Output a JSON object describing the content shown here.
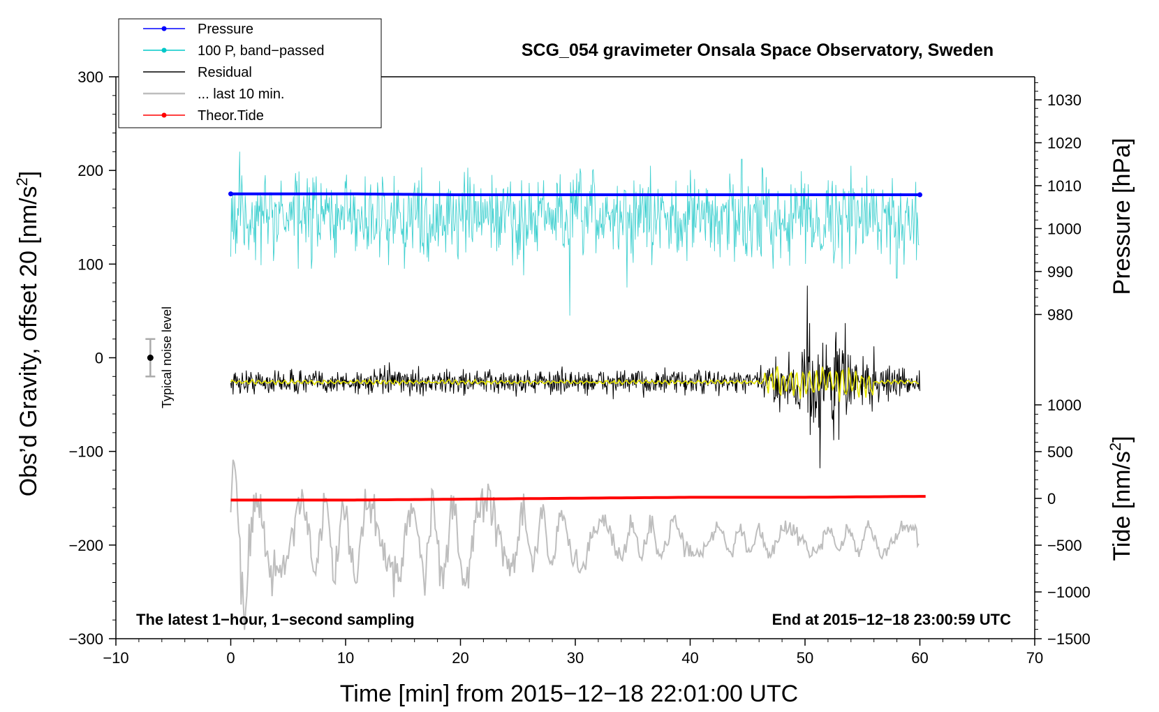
{
  "chart_data": {
    "type": "line",
    "title": "SCG_054 gravimeter Onsala Space Observatory, Sweden",
    "xlabel": "Time [min] from 2015−12−18 22:01:00 UTC",
    "ylabel_left": "Obs’d Gravity, offset 20 [nm/s²]",
    "ylabel_left_main": "Obs’d Gravity, offset 20 [nm/s",
    "ylabel_right_pressure": "Pressure [hPa]",
    "ylabel_right_tide": "Tide [nm/s²]",
    "ylabel_right_tide_main": "Tide [nm/s",
    "ylabel_sup": "2",
    "ylabel_close": "]",
    "xlim": [
      -10,
      70
    ],
    "ylim_left": [
      -300,
      300
    ],
    "x_ticks": [
      "−10",
      "0",
      "10",
      "20",
      "30",
      "40",
      "50",
      "60",
      "70"
    ],
    "x_tick_values": [
      -10,
      0,
      10,
      20,
      30,
      40,
      50,
      60,
      70
    ],
    "y_ticks_left": [
      "−300",
      "−200",
      "−100",
      "0",
      "100",
      "200",
      "300"
    ],
    "y_tick_values_left": [
      -300,
      -200,
      -100,
      0,
      100,
      200,
      300
    ],
    "pressure_ticks": [
      "980",
      "990",
      "1000",
      "1010",
      "1020",
      "1030"
    ],
    "pressure_tick_values": [
      980,
      990,
      1000,
      1010,
      1020,
      1030
    ],
    "tide_ticks": [
      "−1500",
      "−1000",
      "−500",
      "0",
      "500",
      "1000"
    ],
    "tide_tick_values": [
      -1500,
      -1000,
      -500,
      0,
      500,
      1000
    ],
    "annotation_left": "The latest 1−hour, 1−second sampling",
    "annotation_right": "End at 2015−12−18 23:00:59 UTC",
    "noise_label": "Typical noise level",
    "noise_bar": {
      "x": -7,
      "center": 0,
      "half_range": 20
    },
    "legend": [
      {
        "label": "Pressure",
        "color": "#0000ff",
        "marker": true
      },
      {
        "label": "100 P, band−passed",
        "color": "#00c8c8",
        "marker": true
      },
      {
        "label": "Residual",
        "color": "#000000",
        "marker": false
      },
      {
        "label": "... last 10 min.",
        "color": "#bebebe",
        "marker": false
      },
      {
        "label": "Theor.Tide",
        "color": "#ff0000",
        "marker": true
      }
    ],
    "series": [
      {
        "name": "Pressure",
        "color": "#0000ff",
        "x": [
          0,
          10,
          20,
          30,
          40,
          50,
          60
        ],
        "y": [
          175,
          175,
          174,
          174,
          174,
          174,
          174
        ]
      },
      {
        "name": "100 P, band−passed",
        "color": "#40d0d0",
        "x": [
          0,
          0.8,
          7.5,
          14,
          25.5,
          29.5,
          34.5,
          44.5,
          48,
          58,
          60
        ],
        "y": [
          155,
          220,
          150,
          180,
          90,
          45,
          75,
          212,
          150,
          85,
          155
        ]
      },
      {
        "name": "Residual",
        "color": "#000000",
        "x": [
          0,
          13.8,
          20,
          30,
          40,
          46,
          50.2,
          51.2,
          52.5,
          53.5,
          55,
          60
        ],
        "y": [
          -26,
          -5,
          -26,
          -26,
          -26,
          -26,
          77,
          -20,
          -88,
          37,
          -60,
          -26
        ]
      },
      {
        "name": "Residual (smoothed)",
        "color": "#e6e600",
        "x": [
          0,
          30,
          46,
          50.5,
          52,
          56,
          60
        ],
        "y": [
          -26,
          -26,
          -26,
          -25,
          -28,
          -26,
          -26
        ]
      },
      {
        "name": "... last 10 min.",
        "color": "#bebebe",
        "x": [
          0,
          0.4,
          1.1,
          2.3,
          3.8,
          10,
          20,
          21.7,
          28.5,
          38,
          50,
          60
        ],
        "y": [
          -165,
          -83,
          -260,
          -265,
          -200,
          -185,
          -190,
          -245,
          -210,
          -200,
          -190,
          -183
        ]
      },
      {
        "name": "Theor.Tide",
        "color": "#ff0000",
        "x": [
          0,
          10,
          20,
          30,
          40,
          50,
          60.5
        ],
        "y": [
          -152,
          -152,
          -151,
          -150,
          -149,
          -149,
          -148
        ]
      }
    ]
  }
}
